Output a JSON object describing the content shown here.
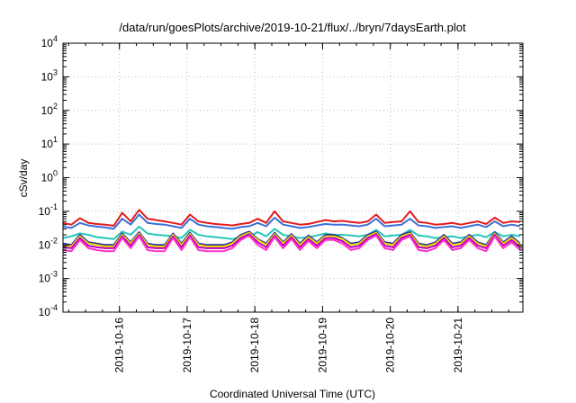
{
  "chart_data": {
    "type": "line",
    "title": "/data/run/goesPlots/archive/2019-10-21/flux/../bryn/7daysEarth.plot",
    "xlabel": "Coordinated Universal Time (UTC)",
    "ylabel": "cSv/day",
    "yscale": "log",
    "ylim": [
      0.0001,
      10000
    ],
    "xlim": [
      "2019-10-15T04:00",
      "2019-10-21T23:00"
    ],
    "grid": true,
    "legend": "none",
    "x_tick_labels": [
      "2019-10-16",
      "2019-10-17",
      "2019-10-18",
      "2019-10-19",
      "2019-10-20",
      "2019-10-21"
    ],
    "y_ticks": [
      {
        "base": "10",
        "exp": "4"
      },
      {
        "base": "10",
        "exp": "3"
      },
      {
        "base": "10",
        "exp": "2"
      },
      {
        "base": "10",
        "exp": "1"
      },
      {
        "base": "10",
        "exp": "0"
      },
      {
        "base": "10",
        "exp": "-1"
      },
      {
        "base": "10",
        "exp": "-2"
      },
      {
        "base": "10",
        "exp": "-3"
      },
      {
        "base": "10",
        "exp": "-4"
      }
    ],
    "x": [
      "2019-10-15T04:00",
      "2019-10-15T07:00",
      "2019-10-15T10:00",
      "2019-10-15T13:00",
      "2019-10-15T16:00",
      "2019-10-15T19:00",
      "2019-10-15T22:00",
      "2019-10-16T01:00",
      "2019-10-16T04:00",
      "2019-10-16T07:00",
      "2019-10-16T10:00",
      "2019-10-16T13:00",
      "2019-10-16T16:00",
      "2019-10-16T19:00",
      "2019-10-16T22:00",
      "2019-10-17T01:00",
      "2019-10-17T04:00",
      "2019-10-17T07:00",
      "2019-10-17T10:00",
      "2019-10-17T13:00",
      "2019-10-17T16:00",
      "2019-10-17T19:00",
      "2019-10-17T22:00",
      "2019-10-18T01:00",
      "2019-10-18T04:00",
      "2019-10-18T07:00",
      "2019-10-18T10:00",
      "2019-10-18T13:00",
      "2019-10-18T16:00",
      "2019-10-18T19:00",
      "2019-10-18T22:00",
      "2019-10-19T01:00",
      "2019-10-19T04:00",
      "2019-10-19T07:00",
      "2019-10-19T10:00",
      "2019-10-19T13:00",
      "2019-10-19T16:00",
      "2019-10-19T19:00",
      "2019-10-19T22:00",
      "2019-10-20T01:00",
      "2019-10-20T04:00",
      "2019-10-20T07:00",
      "2019-10-20T10:00",
      "2019-10-20T13:00",
      "2019-10-20T16:00",
      "2019-10-20T19:00",
      "2019-10-20T22:00",
      "2019-10-21T01:00",
      "2019-10-21T04:00",
      "2019-10-21T07:00",
      "2019-10-21T10:00",
      "2019-10-21T13:00",
      "2019-10-21T16:00",
      "2019-10-21T19:00",
      "2019-10-21T22:00"
    ],
    "series": [
      {
        "color": "#e41a1c",
        "values": [
          0.045,
          0.04,
          0.062,
          0.045,
          0.042,
          0.04,
          0.037,
          0.09,
          0.05,
          0.11,
          0.06,
          0.055,
          0.05,
          0.045,
          0.04,
          0.08,
          0.05,
          0.045,
          0.042,
          0.04,
          0.038,
          0.042,
          0.045,
          0.06,
          0.045,
          0.1,
          0.05,
          0.045,
          0.04,
          0.042,
          0.048,
          0.055,
          0.05,
          0.052,
          0.048,
          0.045,
          0.05,
          0.08,
          0.045,
          0.048,
          0.05,
          0.1,
          0.048,
          0.045,
          0.04,
          0.042,
          0.045,
          0.04,
          0.045,
          0.05,
          0.042,
          0.065,
          0.045,
          0.05,
          0.048
        ]
      },
      {
        "color": "#3b6fd8",
        "values": [
          0.035,
          0.032,
          0.045,
          0.038,
          0.035,
          0.033,
          0.03,
          0.06,
          0.04,
          0.08,
          0.045,
          0.042,
          0.04,
          0.036,
          0.032,
          0.06,
          0.04,
          0.036,
          0.034,
          0.032,
          0.03,
          0.034,
          0.036,
          0.045,
          0.036,
          0.065,
          0.04,
          0.036,
          0.032,
          0.034,
          0.038,
          0.042,
          0.04,
          0.04,
          0.038,
          0.036,
          0.04,
          0.06,
          0.036,
          0.038,
          0.04,
          0.06,
          0.038,
          0.036,
          0.032,
          0.034,
          0.036,
          0.032,
          0.036,
          0.04,
          0.034,
          0.05,
          0.036,
          0.04,
          0.036
        ]
      },
      {
        "color": "#26c6b8",
        "values": [
          0.016,
          0.018,
          0.022,
          0.02,
          0.017,
          0.016,
          0.015,
          0.025,
          0.02,
          0.035,
          0.022,
          0.02,
          0.019,
          0.018,
          0.016,
          0.028,
          0.02,
          0.018,
          0.017,
          0.016,
          0.015,
          0.017,
          0.018,
          0.024,
          0.018,
          0.03,
          0.02,
          0.018,
          0.016,
          0.017,
          0.019,
          0.022,
          0.02,
          0.02,
          0.019,
          0.018,
          0.02,
          0.028,
          0.018,
          0.019,
          0.02,
          0.028,
          0.019,
          0.018,
          0.016,
          0.017,
          0.018,
          0.016,
          0.018,
          0.02,
          0.017,
          0.024,
          0.018,
          0.02,
          0.018
        ]
      },
      {
        "color": "#333399",
        "values": [
          0.011,
          0.01,
          0.02,
          0.012,
          0.011,
          0.01,
          0.01,
          0.022,
          0.012,
          0.024,
          0.011,
          0.01,
          0.01,
          0.022,
          0.011,
          0.023,
          0.011,
          0.01,
          0.01,
          0.01,
          0.012,
          0.02,
          0.025,
          0.015,
          0.011,
          0.023,
          0.012,
          0.021,
          0.011,
          0.019,
          0.012,
          0.02,
          0.02,
          0.016,
          0.011,
          0.012,
          0.02,
          0.025,
          0.012,
          0.011,
          0.02,
          0.024,
          0.011,
          0.01,
          0.012,
          0.02,
          0.011,
          0.012,
          0.02,
          0.012,
          0.01,
          0.024,
          0.012,
          0.018,
          0.011
        ]
      },
      {
        "color": "#e8e000",
        "values": [
          0.01,
          0.009,
          0.018,
          0.011,
          0.01,
          0.009,
          0.009,
          0.02,
          0.011,
          0.022,
          0.01,
          0.009,
          0.009,
          0.02,
          0.01,
          0.021,
          0.01,
          0.009,
          0.009,
          0.009,
          0.011,
          0.018,
          0.023,
          0.014,
          0.01,
          0.021,
          0.011,
          0.019,
          0.01,
          0.017,
          0.011,
          0.018,
          0.018,
          0.015,
          0.01,
          0.011,
          0.018,
          0.023,
          0.011,
          0.01,
          0.018,
          0.022,
          0.01,
          0.009,
          0.011,
          0.018,
          0.01,
          0.011,
          0.018,
          0.011,
          0.009,
          0.022,
          0.011,
          0.016,
          0.01
        ]
      },
      {
        "color": "#c000c0",
        "values": [
          0.0085,
          0.008,
          0.016,
          0.0095,
          0.0085,
          0.008,
          0.008,
          0.018,
          0.0095,
          0.02,
          0.0085,
          0.008,
          0.008,
          0.018,
          0.0085,
          0.019,
          0.0085,
          0.008,
          0.008,
          0.008,
          0.0095,
          0.016,
          0.021,
          0.012,
          0.0085,
          0.019,
          0.0095,
          0.017,
          0.0085,
          0.015,
          0.0095,
          0.016,
          0.016,
          0.013,
          0.0085,
          0.0095,
          0.016,
          0.021,
          0.0095,
          0.0085,
          0.016,
          0.02,
          0.0085,
          0.008,
          0.0095,
          0.016,
          0.0085,
          0.0095,
          0.016,
          0.0095,
          0.008,
          0.02,
          0.0095,
          0.014,
          0.0085
        ]
      },
      {
        "color": "#ff33cc",
        "values": [
          0.007,
          0.0065,
          0.014,
          0.008,
          0.007,
          0.0065,
          0.0065,
          0.016,
          0.008,
          0.018,
          0.007,
          0.0065,
          0.0065,
          0.016,
          0.007,
          0.017,
          0.007,
          0.0065,
          0.0065,
          0.0065,
          0.008,
          0.014,
          0.019,
          0.01,
          0.007,
          0.017,
          0.008,
          0.015,
          0.007,
          0.013,
          0.008,
          0.014,
          0.014,
          0.011,
          0.007,
          0.008,
          0.014,
          0.019,
          0.008,
          0.007,
          0.014,
          0.018,
          0.007,
          0.0065,
          0.008,
          0.014,
          0.007,
          0.008,
          0.014,
          0.008,
          0.0065,
          0.018,
          0.008,
          0.012,
          0.007
        ]
      }
    ]
  }
}
